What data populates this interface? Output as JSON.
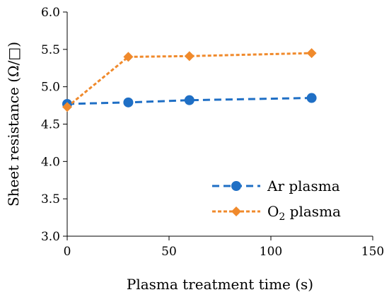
{
  "chart_data": {
    "type": "line",
    "xlabel": "Plasma treatment time (s)",
    "ylabel": "Sheet resistance (Ω/□)",
    "xlim": [
      0,
      150
    ],
    "ylim": [
      3.0,
      6.0
    ],
    "xticks": [
      0,
      50,
      100,
      150
    ],
    "yticks": [
      3.0,
      3.5,
      4.0,
      4.5,
      5.0,
      5.5,
      6.0
    ],
    "xtick_labels": [
      "0",
      "50",
      "100",
      "150"
    ],
    "ytick_labels": [
      "3.0",
      "3.5",
      "4.0",
      "4.5",
      "5.0",
      "5.5",
      "6.0"
    ],
    "grid": false,
    "legend_position": "bottom-right",
    "x": [
      0,
      30,
      60,
      120
    ],
    "series": [
      {
        "name": "Ar plasma",
        "legend_main": "Ar plasma",
        "values": [
          4.77,
          4.79,
          4.82,
          4.85
        ],
        "color": "#1f6fc5",
        "marker": "circle",
        "line_style": "dashed"
      },
      {
        "name": "O2 plasma",
        "legend_main": "O",
        "legend_sub": "2",
        "legend_rest": " plasma",
        "values": [
          4.73,
          5.4,
          5.41,
          5.45
        ],
        "color": "#f08a2c",
        "marker": "diamond",
        "line_style": "dotted"
      }
    ]
  }
}
